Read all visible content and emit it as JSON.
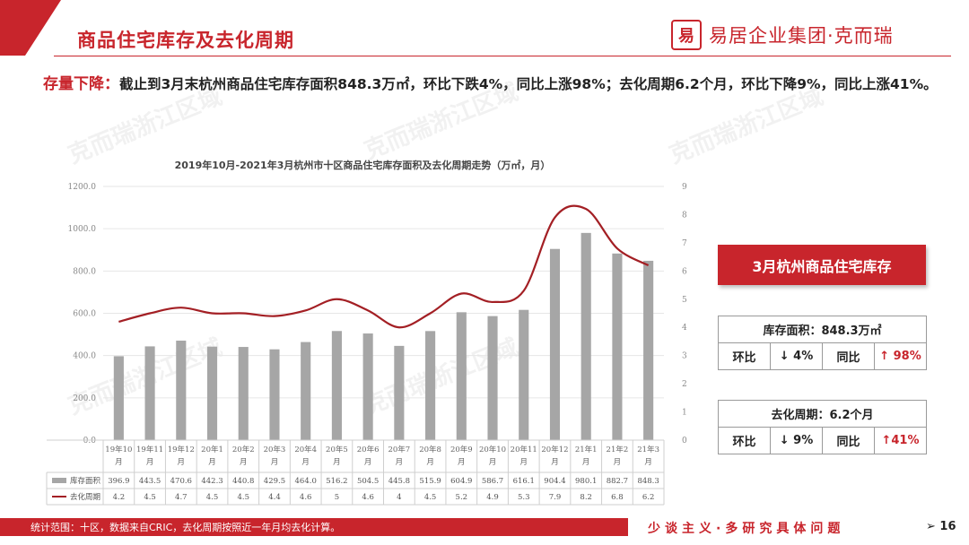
{
  "header": {
    "title": "商品住宅库存及去化周期",
    "logo_mark": "易",
    "logo_text": "易居企业集团·克而瑞"
  },
  "summary": {
    "highlight": "存量下降：",
    "text": "截止到3月末杭州商品住宅库存面积848.3万㎡，环比下跌4%，同比上涨98%；去化周期6.2个月，环比下降9%，同比上涨41%。"
  },
  "watermark": "克而瑞浙江区域",
  "chart_data": {
    "type": "bar",
    "title": "2019年10月-2021年3月杭州市十区商品住宅库存面积及去化周期走势（万㎡，月）",
    "categories": [
      "19年10月",
      "19年11月",
      "19年12月",
      "20年1月",
      "20年2月",
      "20年3月",
      "20年4月",
      "20年5月",
      "20年6月",
      "20年7月",
      "20年8月",
      "20年9月",
      "20年10月",
      "20年11月",
      "20年12月",
      "21年1月",
      "21年2月",
      "21年3月"
    ],
    "series": [
      {
        "name": "库存面积",
        "type": "bar",
        "axis": "left",
        "values": [
          396.9,
          443.5,
          470.6,
          442.3,
          440.8,
          429.5,
          464.0,
          516.2,
          504.5,
          445.8,
          515.9,
          604.9,
          586.7,
          616.1,
          904.4,
          980.1,
          882.7,
          848.3
        ],
        "labels": [
          "396.9",
          "443.5",
          "470.6",
          "442.3",
          "440.8",
          "429.5",
          "464.0",
          "516.2",
          "504.5",
          "445.8",
          "515.9",
          "604.9",
          "586.7",
          "616.1",
          "904.4",
          "980.1",
          "882.7",
          "848.3"
        ]
      },
      {
        "name": "去化周期",
        "type": "line",
        "axis": "right",
        "values": [
          4.2,
          4.5,
          4.7,
          4.5,
          4.5,
          4.4,
          4.6,
          5,
          4.6,
          4,
          4.5,
          5.2,
          4.9,
          5.3,
          7.9,
          8.2,
          6.8,
          6.2
        ],
        "labels": [
          "4.2",
          "4.5",
          "4.7",
          "4.5",
          "4.5",
          "4.4",
          "4.6",
          "5",
          "4.6",
          "4",
          "4.5",
          "5.2",
          "4.9",
          "5.3",
          "7.9",
          "8.2",
          "6.8",
          "6.2"
        ]
      }
    ],
    "ylim": [
      0,
      1200
    ],
    "yticks": [
      "0.0",
      "200.0",
      "400.0",
      "600.0",
      "800.0",
      "1000.0",
      "1200.0"
    ],
    "y2lim": [
      0,
      9
    ],
    "y2ticks": [
      "0",
      "1",
      "2",
      "3",
      "4",
      "5",
      "6",
      "7",
      "8",
      "9"
    ],
    "grid": true,
    "colors": {
      "bar": "#a6a6a6",
      "line": "#a31f24",
      "grid": "#e6e6e6"
    }
  },
  "side_panel": {
    "title": "3月杭州商品住宅库存",
    "inventory": {
      "header": "库存面积：848.3万㎡",
      "mom_label": "环比",
      "mom_value": "↓ 4%",
      "yoy_label": "同比",
      "yoy_value": "↑ 98%"
    },
    "cycle": {
      "header": "去化周期：6.2个月",
      "mom_label": "环比",
      "mom_value": "↓ 9%",
      "yoy_label": "同比",
      "yoy_value": "↑41%"
    }
  },
  "footer": {
    "note": "统计范围：十区，数据来自CRIC，去化周期按照近一年月均去化计算。",
    "motto": "少谈主义·多研究具体问题",
    "page": "➢ 16"
  }
}
